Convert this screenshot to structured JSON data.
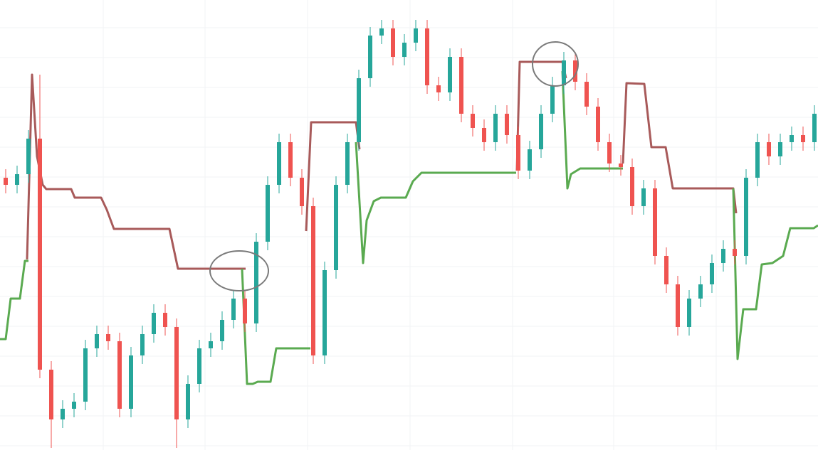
{
  "chart_data": {
    "type": "candlestick",
    "xlim": [
      0,
      1149
    ],
    "ylim": [
      0,
      633
    ],
    "grid": true,
    "xticks": [
      145,
      288,
      432,
      576,
      720,
      862,
      1006
    ],
    "yticks": [
      6,
      48,
      90,
      132,
      174,
      216,
      258,
      300,
      342,
      384,
      426,
      468,
      510,
      552,
      594
    ],
    "up_color": "#26a69a",
    "down_color": "#ef5350",
    "x": [
      8,
      24,
      40,
      56,
      72,
      88,
      104,
      120,
      136,
      152,
      168,
      184,
      200,
      216,
      232,
      248,
      264,
      280,
      296,
      312,
      328,
      344,
      360,
      376,
      392,
      408,
      424,
      440,
      456,
      472,
      488,
      504,
      520,
      536,
      552,
      568,
      584,
      600,
      616,
      632,
      648,
      664,
      680,
      696,
      712,
      728,
      744,
      760,
      776,
      792,
      808,
      824,
      840,
      856,
      872,
      888,
      904,
      920,
      936,
      952,
      968,
      984,
      1000,
      1016,
      1032,
      1048,
      1064,
      1080,
      1096,
      1112,
      1128,
      1144
    ],
    "open": [
      383,
      373,
      388,
      438,
      113,
      43,
      58,
      68,
      143,
      163,
      153,
      58,
      133,
      163,
      193,
      173,
      43,
      93,
      143,
      153,
      183,
      213,
      178,
      293,
      373,
      433,
      383,
      343,
      133,
      253,
      373,
      433,
      523,
      583,
      593,
      553,
      573,
      593,
      513,
      503,
      553,
      473,
      453,
      433,
      473,
      443,
      393,
      423,
      473,
      513,
      548,
      518,
      483,
      433,
      403,
      398,
      343,
      368,
      273,
      233,
      173,
      213,
      233,
      263,
      283,
      273,
      383,
      433,
      413,
      433,
      443,
      433
    ],
    "high": [
      395,
      400,
      450,
      528,
      125,
      70,
      80,
      155,
      175,
      175,
      165,
      145,
      175,
      205,
      205,
      185,
      105,
      155,
      165,
      195,
      225,
      225,
      305,
      385,
      445,
      445,
      395,
      355,
      265,
      385,
      445,
      535,
      595,
      605,
      605,
      585,
      605,
      605,
      525,
      565,
      565,
      485,
      465,
      485,
      485,
      455,
      435,
      485,
      525,
      560,
      560,
      530,
      495,
      445,
      415,
      410,
      380,
      380,
      285,
      245,
      225,
      245,
      275,
      295,
      295,
      395,
      445,
      445,
      445,
      455,
      455,
      485
    ],
    "low": [
      361,
      361,
      376,
      101,
      3,
      31,
      46,
      56,
      131,
      141,
      46,
      46,
      121,
      151,
      161,
      3,
      31,
      81,
      131,
      141,
      171,
      166,
      166,
      281,
      361,
      371,
      331,
      121,
      121,
      241,
      361,
      421,
      511,
      571,
      541,
      541,
      561,
      501,
      491,
      491,
      461,
      441,
      421,
      421,
      431,
      381,
      381,
      411,
      461,
      501,
      506,
      471,
      421,
      391,
      386,
      331,
      331,
      261,
      221,
      161,
      161,
      201,
      221,
      251,
      261,
      261,
      371,
      401,
      401,
      421,
      421,
      421
    ],
    "close": [
      373,
      388,
      438,
      113,
      43,
      58,
      68,
      143,
      163,
      153,
      58,
      133,
      163,
      193,
      173,
      43,
      93,
      143,
      153,
      183,
      213,
      178,
      293,
      373,
      433,
      383,
      343,
      133,
      253,
      373,
      433,
      523,
      583,
      593,
      553,
      573,
      593,
      513,
      503,
      553,
      473,
      453,
      433,
      473,
      443,
      393,
      423,
      473,
      513,
      548,
      518,
      483,
      433,
      403,
      398,
      343,
      368,
      273,
      233,
      173,
      213,
      233,
      263,
      283,
      273,
      383,
      433,
      413,
      433,
      443,
      433,
      473
    ],
    "series": [
      {
        "color": "#a85a5a",
        "x": [
          38,
          45,
          52,
          60,
          65,
          100,
          105,
          142,
          150,
          160,
          238,
          250,
          345,
          390,
          430,
          437,
          500,
          505,
          600,
          726,
          730,
          790,
          795,
          830,
          875,
          880,
          905,
          915,
          935,
          945,
          1030,
          1034
        ],
        "values": [
          268,
          528,
          413,
          373,
          367,
          367,
          355,
          355,
          338,
          311,
          311,
          255,
          255,
          null,
          308,
          461,
          461,
          423,
          null,
          393,
          546,
          546,
          523,
          null,
          403,
          516,
          515,
          426,
          426,
          368,
          368,
          333
        ]
      },
      {
        "color": "#5aaa50",
        "x": [
          0,
          8,
          15,
          28,
          35,
          40,
          190,
          340,
          347,
          355,
          362,
          380,
          388,
          430,
          436,
          470,
          500,
          510,
          515,
          525,
          535,
          570,
          580,
          592,
          725,
          760,
          790,
          797,
          802,
          815,
          875,
          950,
          1030,
          1036,
          1044,
          1062,
          1070,
          1085,
          1100,
          1110,
          1143,
          1149
        ],
        "values": [
          156,
          156,
          213,
          213,
          266,
          266,
          null,
          255,
          93,
          93,
          96,
          96,
          143,
          143,
          143,
          null,
          433,
          263,
          323,
          350,
          355,
          355,
          378,
          390,
          390,
          null,
          533,
          368,
          388,
          396,
          396,
          null,
          368,
          128,
          198,
          198,
          261,
          263,
          273,
          312,
          312,
          316
        ]
      }
    ]
  }
}
